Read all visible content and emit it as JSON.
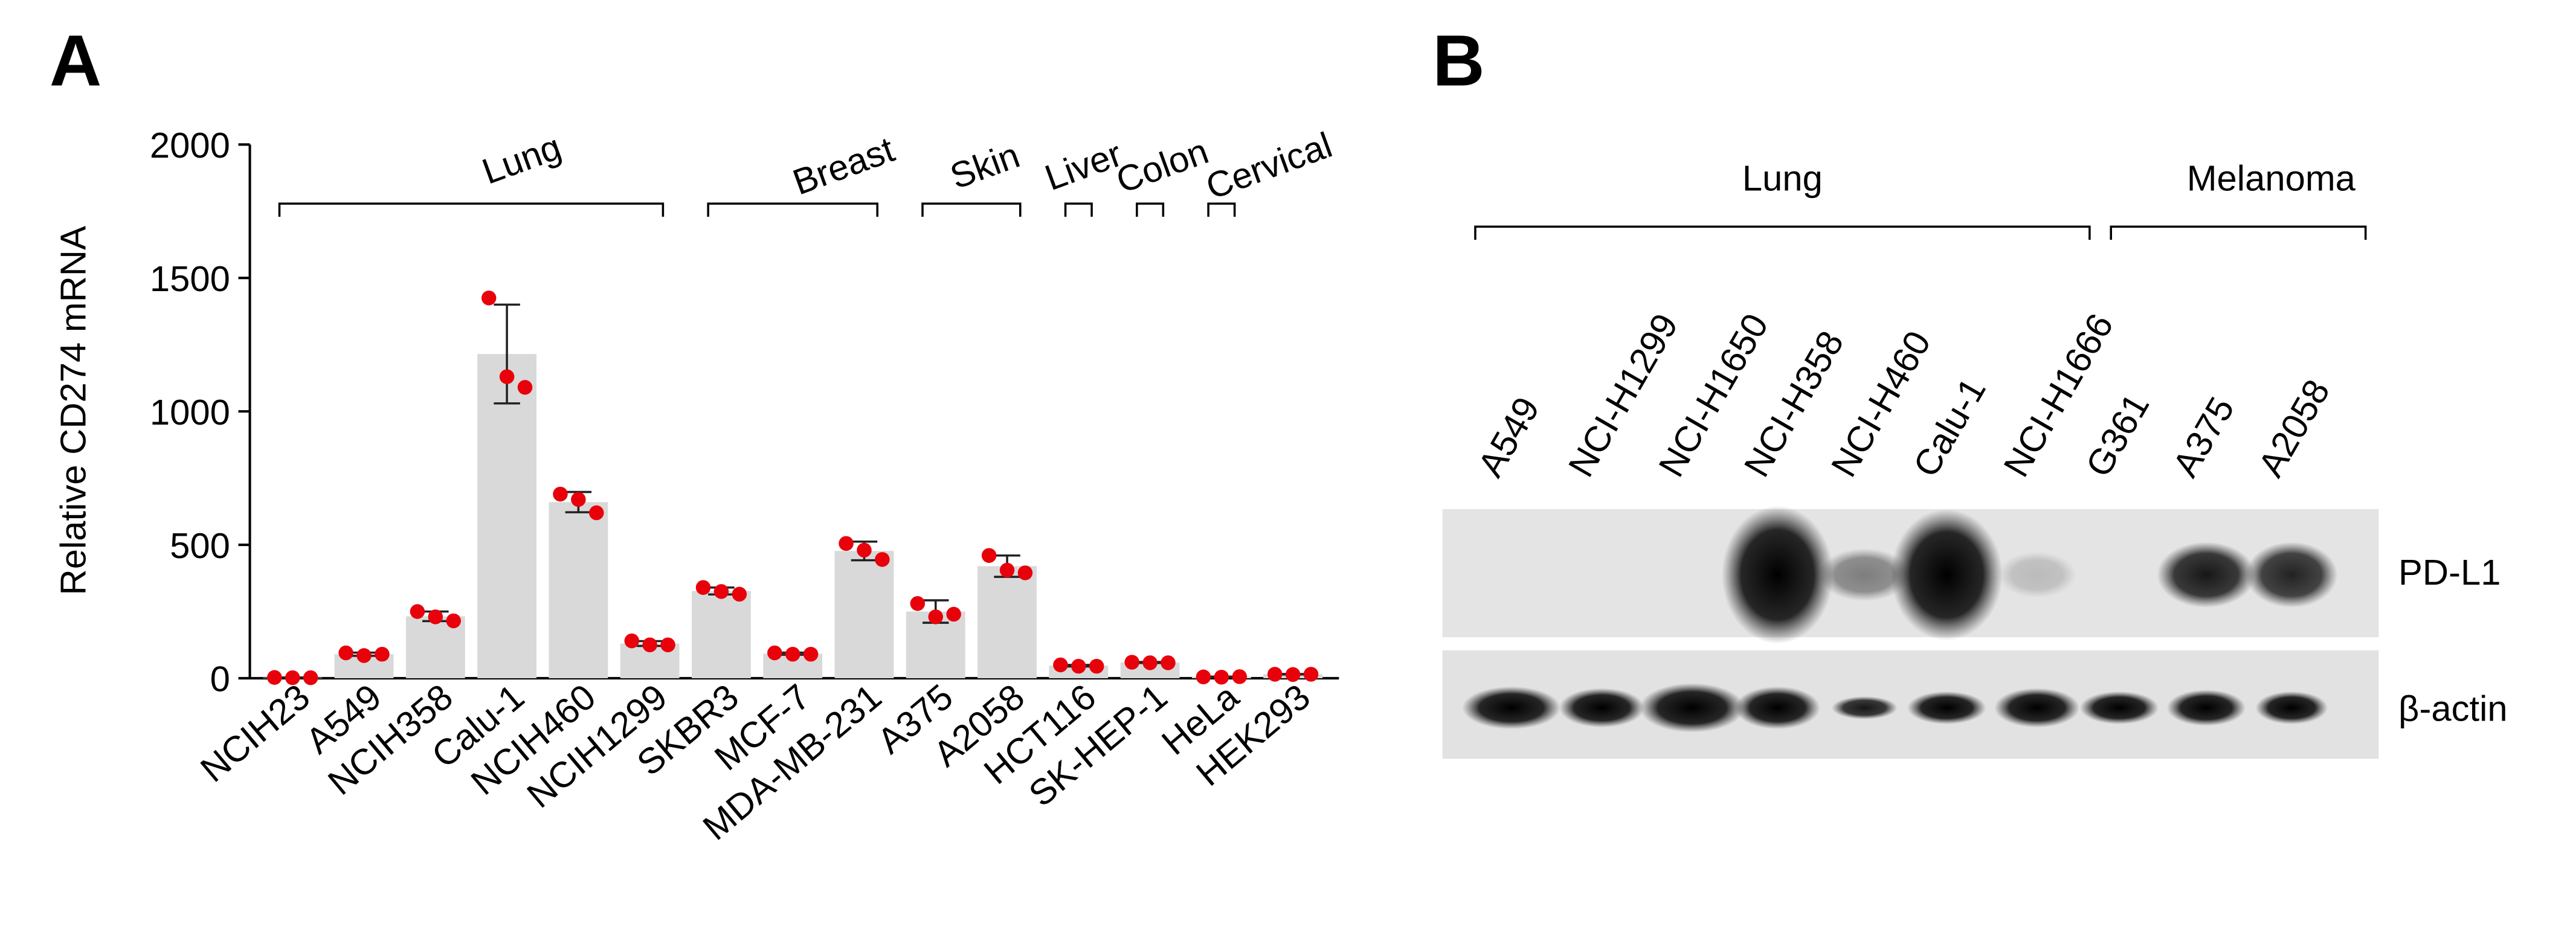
{
  "panel_labels": [
    "A",
    "B"
  ],
  "chart_data": {
    "type": "bar",
    "y_label": "Relative CD274 mRNA",
    "categories": [
      "NCIH23",
      "A549",
      "NCIH358",
      "Calu-1",
      "NCIH460",
      "NCIH1299",
      "SKBR3",
      "MCF-7",
      "MDA-MB-231",
      "A375",
      "A2058",
      "HCT116",
      "SK-HEP-1",
      "HeLa",
      "HEK293"
    ],
    "values": [
      2,
      90,
      232,
      1215,
      660,
      130,
      327,
      92,
      477,
      250,
      420,
      47,
      59,
      5,
      15
    ],
    "errors": [
      1,
      6,
      18,
      185,
      38,
      9,
      13,
      4,
      35,
      42,
      40,
      3,
      2,
      1,
      1
    ],
    "replicates": [
      [
        3,
        2,
        2
      ],
      [
        95,
        85,
        90
      ],
      [
        250,
        230,
        215
      ],
      [
        1425,
        1130,
        1090
      ],
      [
        690,
        670,
        620
      ],
      [
        140,
        125,
        125
      ],
      [
        340,
        325,
        315
      ],
      [
        95,
        90,
        90
      ],
      [
        505,
        480,
        445
      ],
      [
        280,
        230,
        240
      ],
      [
        460,
        405,
        395
      ],
      [
        50,
        45,
        45
      ],
      [
        60,
        58,
        58
      ],
      [
        5,
        4,
        6
      ],
      [
        15,
        14,
        15
      ]
    ],
    "groups": [
      "Lung",
      "Breast",
      "Skin",
      "Liver",
      "Colon",
      "Cervical"
    ],
    "color": "#d9d9d9",
    "point_color": "#e8000b",
    "ylim": [
      0,
      2000
    ],
    "yticks": [
      0,
      500,
      1000,
      1500,
      2000
    ]
  },
  "blot": {
    "groups": [
      "Lung",
      "Melanoma"
    ],
    "lanes": [
      "A549",
      "NCI-H1299",
      "NCI-H1650",
      "NCI-H358",
      "NCI-H460",
      "Calu-1",
      "NCI-H1666",
      "G361",
      "A375",
      "A2058"
    ],
    "bands": [
      "PD-L1",
      "β-actin"
    ]
  }
}
